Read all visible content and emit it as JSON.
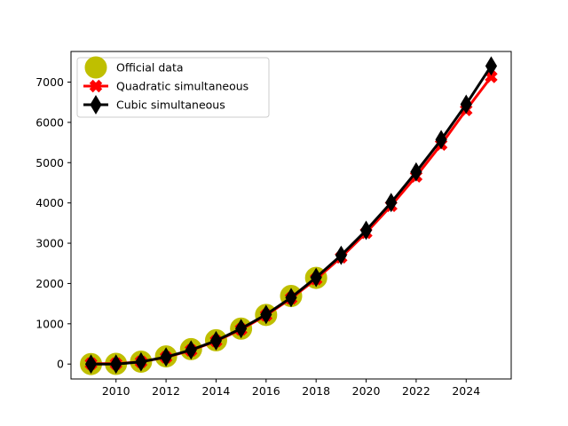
{
  "chart_data": {
    "type": "line",
    "title": "",
    "xlabel": "",
    "ylabel": "",
    "xlim": [
      2008.2,
      2025.8
    ],
    "ylim": [
      -370,
      7760
    ],
    "xticks": [
      2010,
      2012,
      2014,
      2016,
      2018,
      2020,
      2022,
      2024
    ],
    "yticks": [
      0,
      1000,
      2000,
      3000,
      4000,
      5000,
      6000,
      7000
    ],
    "grid": false,
    "legend_position": "upper-left",
    "series": [
      {
        "name": "Official data",
        "style": "markers-only",
        "marker": "circle",
        "color": "#bfbf00",
        "x": [
          2009,
          2010,
          2011,
          2012,
          2013,
          2014,
          2015,
          2016,
          2017,
          2018
        ],
        "y": [
          0,
          5,
          60,
          190,
          370,
          590,
          880,
          1220,
          1690,
          2140
        ]
      },
      {
        "name": "Quadratic simultaneous",
        "style": "line-markers",
        "marker": "x",
        "color": "#ff0000",
        "x": [
          2009,
          2010,
          2011,
          2012,
          2013,
          2014,
          2015,
          2016,
          2017,
          2018,
          2019,
          2020,
          2021,
          2022,
          2023,
          2024,
          2025
        ],
        "y": [
          10,
          10,
          55,
          170,
          340,
          570,
          860,
          1210,
          1630,
          2110,
          2650,
          3260,
          3930,
          4660,
          5450,
          6310,
          7130
        ]
      },
      {
        "name": "Cubic simultaneous",
        "style": "line-markers",
        "marker": "thin-diamond",
        "color": "#000000",
        "x": [
          2009,
          2010,
          2011,
          2012,
          2013,
          2014,
          2015,
          2016,
          2017,
          2018,
          2019,
          2020,
          2021,
          2022,
          2023,
          2024,
          2025
        ],
        "y": [
          0,
          0,
          55,
          175,
          350,
          580,
          880,
          1230,
          1650,
          2150,
          2700,
          3320,
          4010,
          4770,
          5570,
          6450,
          7400
        ]
      }
    ]
  }
}
